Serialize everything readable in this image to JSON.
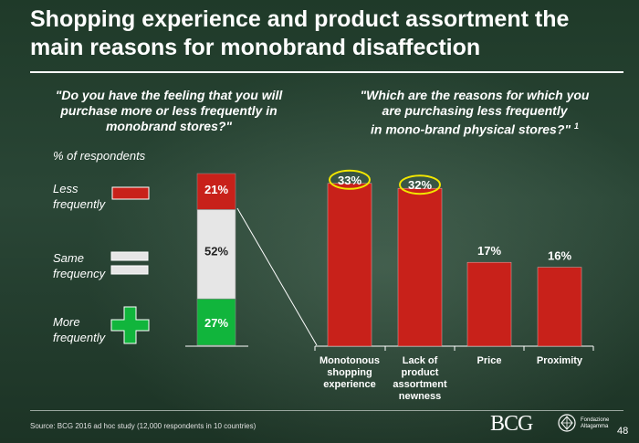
{
  "title": "Shopping experience and product assortment the main reasons for monobrand disaffection",
  "question_left": "\"Do you have the feeling that you will purchase more or less frequently in monobrand stores?\"",
  "question_right_line1": "\"Which are the reasons for which you",
  "question_right_line2": "are purchasing less frequently",
  "question_right_line3": "in mono-brand physical stores?\"",
  "question_right_footnote": "1",
  "unit_label": "% of respondents",
  "legend": [
    {
      "label": "Less frequently",
      "icon": "minus-icon",
      "color": "#c8211a"
    },
    {
      "label": "Same frequency",
      "icon": "equals-icon",
      "color": "#e6e6e6"
    },
    {
      "label": "More frequently",
      "icon": "plus-icon",
      "color": "#11b53c"
    }
  ],
  "chart_data": [
    {
      "type": "bar",
      "stacked": true,
      "title": "\"Do you have the feeling that you will purchase more or less frequently in monobrand stores?\"",
      "ylabel": "% of respondents",
      "segments": [
        {
          "name": "Less frequently",
          "value": 21,
          "label": "21%",
          "color": "#c8211a"
        },
        {
          "name": "Same frequency",
          "value": 52,
          "label": "52%",
          "color": "#e6e6e6"
        },
        {
          "name": "More frequently",
          "value": 27,
          "label": "27%",
          "color": "#11b53c"
        }
      ]
    },
    {
      "type": "bar",
      "title": "\"Which are the reasons for which you are purchasing less frequently in mono-brand physical stores?\"",
      "ylim": [
        0,
        35
      ],
      "categories": [
        [
          "Monotonous",
          "shopping",
          "experience"
        ],
        [
          "Lack of",
          "product",
          "assortment",
          "newness"
        ],
        [
          "Price"
        ],
        [
          "Proximity"
        ]
      ],
      "values": [
        33,
        32,
        17,
        16
      ],
      "labels": [
        "33%",
        "32%",
        "17%",
        "16%"
      ],
      "highlighted": [
        true,
        true,
        false,
        false
      ],
      "color": "#c8211a"
    }
  ],
  "source": "Source: BCG 2016 ad hoc study (12,000 respondents in 10 countries)",
  "logo_bcg": "BCG",
  "logo_fa_line1": "Fondazione",
  "logo_fa_line2": "Altagamma",
  "page_number": "48"
}
